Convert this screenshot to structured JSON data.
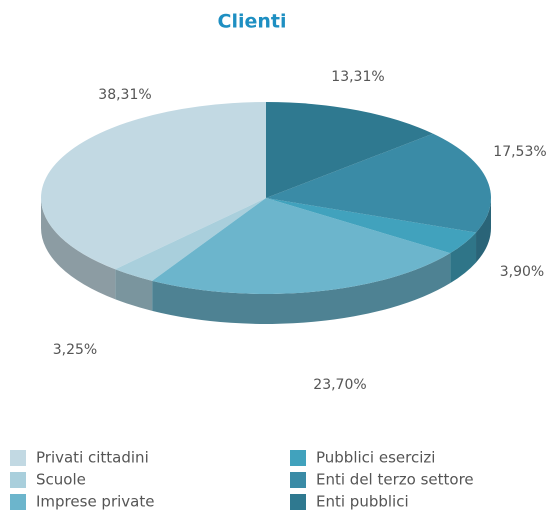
{
  "chart_data": {
    "type": "pie",
    "title": "Clienti",
    "categories": [
      "Privati cittadini",
      "Scuole",
      "Imprese private",
      "Pubblici esercizi",
      "Enti del terzo settore",
      "Enti pubblici"
    ],
    "values": [
      38.31,
      3.25,
      23.7,
      3.9,
      17.53,
      13.31
    ],
    "value_labels": [
      "38,31%",
      "3,25%",
      "23,70%",
      "3,90%",
      "17,53%",
      "13,31%"
    ],
    "colors": [
      "#c2d9e3",
      "#a9cfdc",
      "#6cb5cc",
      "#41a2bd",
      "#3a8ba6",
      "#2f7990"
    ],
    "legend": "bottom"
  }
}
